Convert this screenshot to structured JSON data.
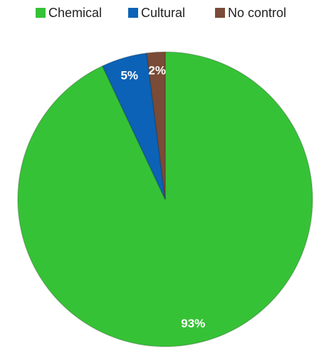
{
  "chart_data": {
    "type": "pie",
    "categories": [
      "Chemical",
      "Cultural",
      "No control"
    ],
    "values": [
      93,
      5,
      2
    ],
    "value_labels": [
      "93%",
      "5%",
      "2%"
    ],
    "colors": [
      "#36c236",
      "#0c62b6",
      "#7a4b36"
    ],
    "legend": "top"
  }
}
